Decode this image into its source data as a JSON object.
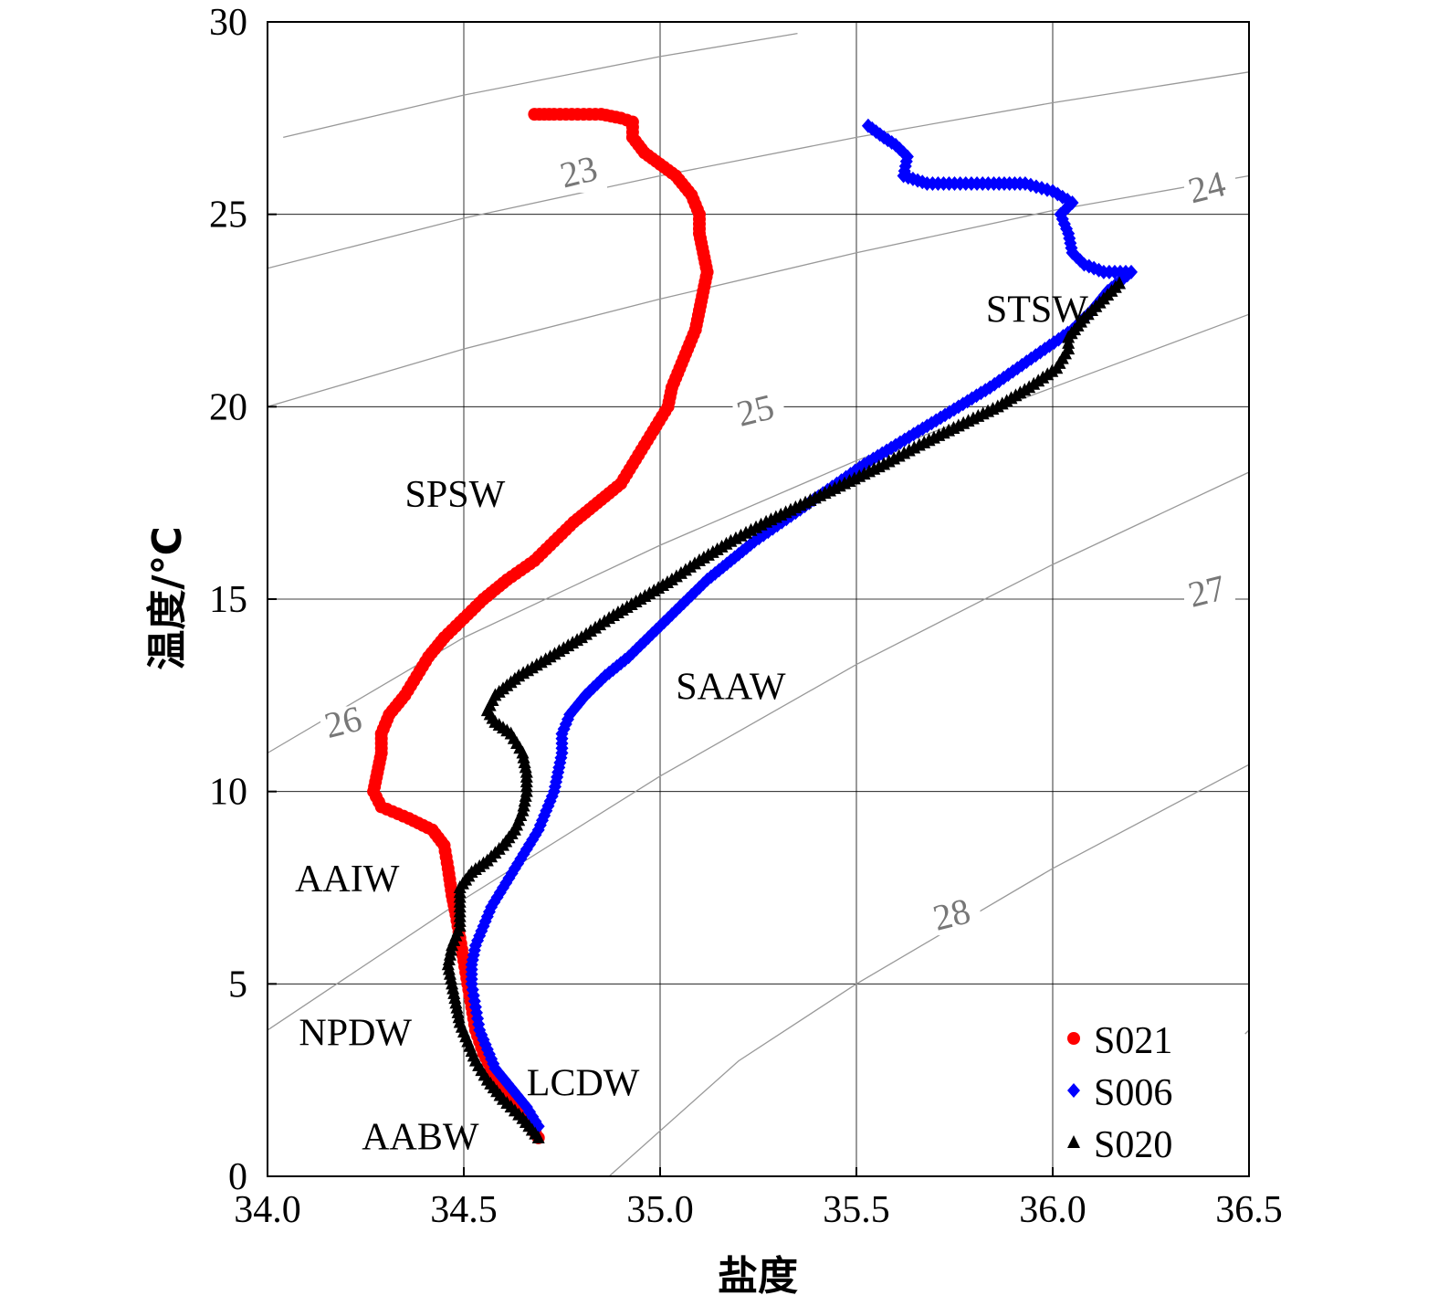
{
  "chart_data": {
    "type": "scatter",
    "xlabel": "盐度",
    "ylabel": "温度/℃",
    "xlim": [
      34.0,
      36.5
    ],
    "ylim": [
      0,
      30
    ],
    "x_ticks": [
      "34.0",
      "34.5",
      "35.0",
      "35.5",
      "36.0",
      "36.5"
    ],
    "y_ticks": [
      "0",
      "5",
      "10",
      "15",
      "20",
      "25",
      "30"
    ],
    "grid": true,
    "legend_position": "bottom-right",
    "series": [
      {
        "name": "S021",
        "marker": "circle",
        "color": "#ff0000",
        "points": [
          [
            34.69,
            1.0
          ],
          [
            34.66,
            1.5
          ],
          [
            34.62,
            2.0
          ],
          [
            34.58,
            2.6
          ],
          [
            34.55,
            3.2
          ],
          [
            34.53,
            3.8
          ],
          [
            34.52,
            4.4
          ],
          [
            34.51,
            5.0
          ],
          [
            34.5,
            5.6
          ],
          [
            34.49,
            6.2
          ],
          [
            34.48,
            6.8
          ],
          [
            34.47,
            7.3
          ],
          [
            34.46,
            8.0
          ],
          [
            34.45,
            8.6
          ],
          [
            34.42,
            9.0
          ],
          [
            34.36,
            9.3
          ],
          [
            34.29,
            9.6
          ],
          [
            34.27,
            10.0
          ],
          [
            34.28,
            10.5
          ],
          [
            34.29,
            11.0
          ],
          [
            34.29,
            11.5
          ],
          [
            34.31,
            12.0
          ],
          [
            34.35,
            12.5
          ],
          [
            34.38,
            13.0
          ],
          [
            34.41,
            13.5
          ],
          [
            34.45,
            14.0
          ],
          [
            34.5,
            14.5
          ],
          [
            34.55,
            15.0
          ],
          [
            34.61,
            15.5
          ],
          [
            34.68,
            16.0
          ],
          [
            34.73,
            16.5
          ],
          [
            34.78,
            17.0
          ],
          [
            34.84,
            17.5
          ],
          [
            34.9,
            18.0
          ],
          [
            34.93,
            18.5
          ],
          [
            34.96,
            19.0
          ],
          [
            34.99,
            19.5
          ],
          [
            35.02,
            20.0
          ],
          [
            35.03,
            20.5
          ],
          [
            35.05,
            21.0
          ],
          [
            35.07,
            21.5
          ],
          [
            35.09,
            22.0
          ],
          [
            35.1,
            22.5
          ],
          [
            35.11,
            23.0
          ],
          [
            35.12,
            23.5
          ],
          [
            35.11,
            24.0
          ],
          [
            35.1,
            24.5
          ],
          [
            35.1,
            25.0
          ],
          [
            35.08,
            25.5
          ],
          [
            35.04,
            26.0
          ],
          [
            35.0,
            26.3
          ],
          [
            34.96,
            26.6
          ],
          [
            34.93,
            27.0
          ],
          [
            34.93,
            27.4
          ],
          [
            34.9,
            27.5
          ],
          [
            34.85,
            27.6
          ],
          [
            34.79,
            27.6
          ],
          [
            34.73,
            27.6
          ],
          [
            34.68,
            27.6
          ]
        ]
      },
      {
        "name": "S006",
        "marker": "diamond",
        "color": "#0000ff",
        "points": [
          [
            34.69,
            1.3
          ],
          [
            34.66,
            1.8
          ],
          [
            34.62,
            2.3
          ],
          [
            34.58,
            2.8
          ],
          [
            34.56,
            3.3
          ],
          [
            34.54,
            3.8
          ],
          [
            34.53,
            4.4
          ],
          [
            34.52,
            5.0
          ],
          [
            34.52,
            5.5
          ],
          [
            34.53,
            6.0
          ],
          [
            34.55,
            6.5
          ],
          [
            34.57,
            7.0
          ],
          [
            34.6,
            7.5
          ],
          [
            34.63,
            8.0
          ],
          [
            34.66,
            8.5
          ],
          [
            34.69,
            9.0
          ],
          [
            34.71,
            9.5
          ],
          [
            34.73,
            10.0
          ],
          [
            34.74,
            10.5
          ],
          [
            34.75,
            11.0
          ],
          [
            34.75,
            11.5
          ],
          [
            34.77,
            12.0
          ],
          [
            34.81,
            12.5
          ],
          [
            34.86,
            13.0
          ],
          [
            34.92,
            13.5
          ],
          [
            34.97,
            14.0
          ],
          [
            35.02,
            14.5
          ],
          [
            35.07,
            15.0
          ],
          [
            35.12,
            15.5
          ],
          [
            35.18,
            16.0
          ],
          [
            35.24,
            16.5
          ],
          [
            35.31,
            17.0
          ],
          [
            35.38,
            17.5
          ],
          [
            35.45,
            18.0
          ],
          [
            35.52,
            18.5
          ],
          [
            35.6,
            19.0
          ],
          [
            35.68,
            19.5
          ],
          [
            35.76,
            20.0
          ],
          [
            35.84,
            20.5
          ],
          [
            35.91,
            21.0
          ],
          [
            35.98,
            21.5
          ],
          [
            36.05,
            22.0
          ],
          [
            36.1,
            22.5
          ],
          [
            36.14,
            23.0
          ],
          [
            36.2,
            23.5
          ],
          [
            36.13,
            23.5
          ],
          [
            36.08,
            23.7
          ],
          [
            36.05,
            24.0
          ],
          [
            36.04,
            24.5
          ],
          [
            36.02,
            25.0
          ],
          [
            36.05,
            25.3
          ],
          [
            36.0,
            25.6
          ],
          [
            35.93,
            25.8
          ],
          [
            35.85,
            25.8
          ],
          [
            35.75,
            25.8
          ],
          [
            35.68,
            25.8
          ],
          [
            35.62,
            26.0
          ],
          [
            35.63,
            26.5
          ],
          [
            35.6,
            26.8
          ],
          [
            35.57,
            27.0
          ],
          [
            35.53,
            27.3
          ]
        ]
      },
      {
        "name": "S020",
        "marker": "triangle",
        "color": "#000000",
        "points": [
          [
            34.69,
            1.0
          ],
          [
            34.65,
            1.5
          ],
          [
            34.6,
            2.0
          ],
          [
            34.56,
            2.5
          ],
          [
            34.53,
            3.0
          ],
          [
            34.51,
            3.5
          ],
          [
            34.49,
            4.0
          ],
          [
            34.48,
            4.5
          ],
          [
            34.47,
            5.0
          ],
          [
            34.46,
            5.5
          ],
          [
            34.47,
            6.0
          ],
          [
            34.49,
            6.5
          ],
          [
            34.49,
            7.0
          ],
          [
            34.49,
            7.5
          ],
          [
            34.52,
            7.9
          ],
          [
            34.56,
            8.2
          ],
          [
            34.6,
            8.6
          ],
          [
            34.63,
            9.0
          ],
          [
            34.65,
            9.5
          ],
          [
            34.66,
            10.0
          ],
          [
            34.66,
            10.5
          ],
          [
            34.65,
            11.0
          ],
          [
            34.62,
            11.5
          ],
          [
            34.58,
            11.8
          ],
          [
            34.56,
            12.1
          ],
          [
            34.58,
            12.5
          ],
          [
            34.64,
            13.0
          ],
          [
            34.72,
            13.5
          ],
          [
            34.8,
            14.0
          ],
          [
            34.87,
            14.5
          ],
          [
            34.95,
            15.0
          ],
          [
            35.03,
            15.5
          ],
          [
            35.1,
            16.0
          ],
          [
            35.18,
            16.5
          ],
          [
            35.27,
            17.0
          ],
          [
            35.37,
            17.5
          ],
          [
            35.47,
            18.0
          ],
          [
            35.57,
            18.5
          ],
          [
            35.66,
            19.0
          ],
          [
            35.76,
            19.5
          ],
          [
            35.86,
            20.0
          ],
          [
            35.94,
            20.5
          ],
          [
            36.01,
            21.0
          ],
          [
            36.04,
            21.5
          ],
          [
            36.04,
            21.8
          ],
          [
            36.08,
            22.3
          ],
          [
            36.13,
            22.8
          ],
          [
            36.17,
            23.2
          ]
        ]
      }
    ],
    "isopycnals": [
      {
        "label": "23",
        "points": [
          [
            34.04,
            27.0
          ],
          [
            34.5,
            28.1
          ],
          [
            35.0,
            29.1
          ],
          [
            35.35,
            29.7
          ]
        ]
      },
      {
        "label": "24",
        "points": [
          [
            34.0,
            23.6
          ],
          [
            34.5,
            24.9
          ],
          [
            35.0,
            26.0
          ],
          [
            35.5,
            27.0
          ],
          [
            36.0,
            27.9
          ],
          [
            36.5,
            28.7
          ]
        ]
      },
      {
        "label": "25",
        "points": [
          [
            34.0,
            20.0
          ],
          [
            34.5,
            21.5
          ],
          [
            35.0,
            22.8
          ],
          [
            35.5,
            24.0
          ],
          [
            36.0,
            25.1
          ],
          [
            36.5,
            26.0
          ]
        ]
      },
      {
        "label": "26",
        "points": [
          [
            34.0,
            11.0
          ],
          [
            34.5,
            14.0
          ],
          [
            35.0,
            16.4
          ],
          [
            35.5,
            18.6
          ],
          [
            36.0,
            20.5
          ],
          [
            36.5,
            22.4
          ]
        ]
      },
      {
        "label": "27",
        "points": [
          [
            34.0,
            3.8
          ],
          [
            34.5,
            7.2
          ],
          [
            35.0,
            10.4
          ],
          [
            35.5,
            13.3
          ],
          [
            36.0,
            15.9
          ],
          [
            36.5,
            18.3
          ]
        ]
      },
      {
        "label": "28",
        "points": [
          [
            34.87,
            0.0
          ],
          [
            35.2,
            3.0
          ],
          [
            35.5,
            5.0
          ],
          [
            36.0,
            8.0
          ],
          [
            36.5,
            10.7
          ]
        ]
      },
      {
        "label": "",
        "points": [
          [
            36.49,
            3.7
          ],
          [
            36.5,
            3.8
          ]
        ]
      }
    ],
    "water_masses": [
      {
        "label": "STSW",
        "x": 35.83,
        "y": 22.2
      },
      {
        "label": "SPSW",
        "x": 34.35,
        "y": 17.4
      },
      {
        "label": "SAAW",
        "x": 35.04,
        "y": 12.4
      },
      {
        "label": "AAIW",
        "x": 34.07,
        "y": 7.4
      },
      {
        "label": "NPDW",
        "x": 34.08,
        "y": 3.4
      },
      {
        "label": "LCDW",
        "x": 34.66,
        "y": 2.1
      },
      {
        "label": "AABW",
        "x": 34.24,
        "y": 0.7
      }
    ],
    "isopycnal_label_positions": [
      {
        "label": "23",
        "x": 34.8,
        "y": 25.8
      },
      {
        "label": "24",
        "x": 36.4,
        "y": 25.4
      },
      {
        "label": "25",
        "x": 35.25,
        "y": 19.6
      },
      {
        "label": "26",
        "x": 34.2,
        "y": 11.5
      },
      {
        "label": "27",
        "x": 36.4,
        "y": 14.9
      },
      {
        "label": "28",
        "x": 35.75,
        "y": 6.5
      }
    ]
  }
}
